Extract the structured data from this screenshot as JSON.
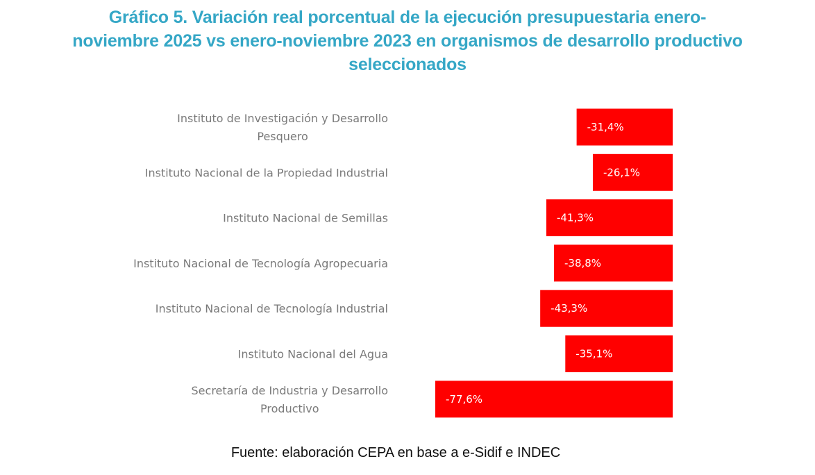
{
  "chart_data": {
    "type": "bar",
    "orientation": "horizontal",
    "title_lines": [
      "Gráfico 5. Variación real porcentual de la ejecución presupuestaria enero-",
      "noviembre 2025 vs enero-noviembre 2023 en organismos de desarrollo productivo",
      "seleccionados"
    ],
    "categories": [
      [
        "Instituto de Investigación y Desarrollo",
        "Pesquero"
      ],
      [
        "Instituto Nacional de la Propiedad Industrial"
      ],
      [
        "Instituto Nacional de Semillas"
      ],
      [
        "Instituto Nacional de Tecnología Agropecuaria"
      ],
      [
        "Instituto Nacional de Tecnología Industrial"
      ],
      [
        "Instituto Nacional del Agua"
      ],
      [
        "Secretaría de Industria y Desarrollo",
        "Productivo"
      ]
    ],
    "values": [
      -31.4,
      -26.1,
      -41.3,
      -38.8,
      -43.3,
      -35.1,
      -77.6
    ],
    "data_labels": [
      "-31,4%",
      "-26,1%",
      "-41,3%",
      "-38,8%",
      "-43,3%",
      "-35,1%",
      "-77,6%"
    ],
    "xlim": [
      -77.6,
      0
    ],
    "xlabel": "",
    "ylabel": "",
    "grid": false,
    "legend": "none",
    "bar_color": "#ff0000",
    "title_color": "#35a7c6"
  },
  "source_note": "Fuente: elaboración CEPA en base a e-Sidif e INDEC"
}
